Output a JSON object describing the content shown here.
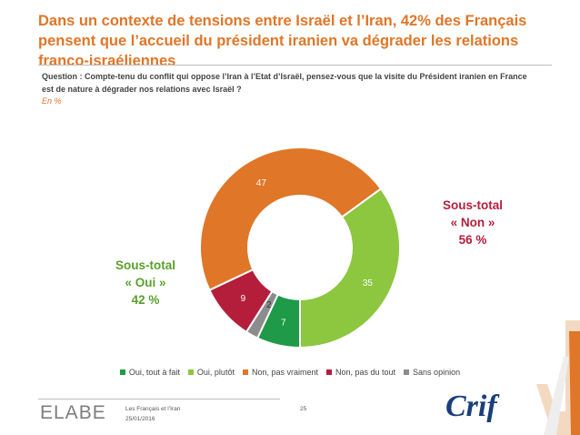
{
  "title": "Dans un contexte de tensions entre Israël et l’Iran, 42% des Français pensent que l’accueil du président iranien va dégrader les relations franco-israéliennes",
  "question": "Question : Compte-tenu du conflit qui oppose l’Iran à l’Etat d’Israël, pensez-vous que la visite du Président iranien en France est de nature à dégrader nos relations avec Israël ?",
  "unit": "En %",
  "subtotal_non": {
    "line1": "Sous-total",
    "line2": "« Non »",
    "line3": "56 %"
  },
  "subtotal_oui": {
    "line1": "Sous-total",
    "line2": "« Oui »",
    "line3": "42 %"
  },
  "colors": {
    "accent": "#e07628",
    "oui_tout_a_fait": "#1e9a48",
    "oui_plutot": "#8dc63f",
    "non_pas_vraiment": "#e07628",
    "non_pas_du_tout": "#b51e3b",
    "sans_opinion": "#8c8c8c"
  },
  "chart_data": {
    "type": "pie",
    "donut": true,
    "categories": [
      "Oui, tout à fait",
      "Oui, plutôt",
      "Non, pas vraiment",
      "Non, pas du tout",
      "Sans opinion"
    ],
    "values": [
      7,
      35,
      47,
      9,
      2
    ],
    "colors": [
      "#1e9a48",
      "#8dc63f",
      "#e07628",
      "#b51e3b",
      "#8c8c8c"
    ],
    "legend_position": "bottom"
  },
  "footer": {
    "logo": "ELABE",
    "study": "Les Français et l’Iran",
    "date": "25/01/2016",
    "page": "25",
    "partner_logo": "Crif"
  }
}
